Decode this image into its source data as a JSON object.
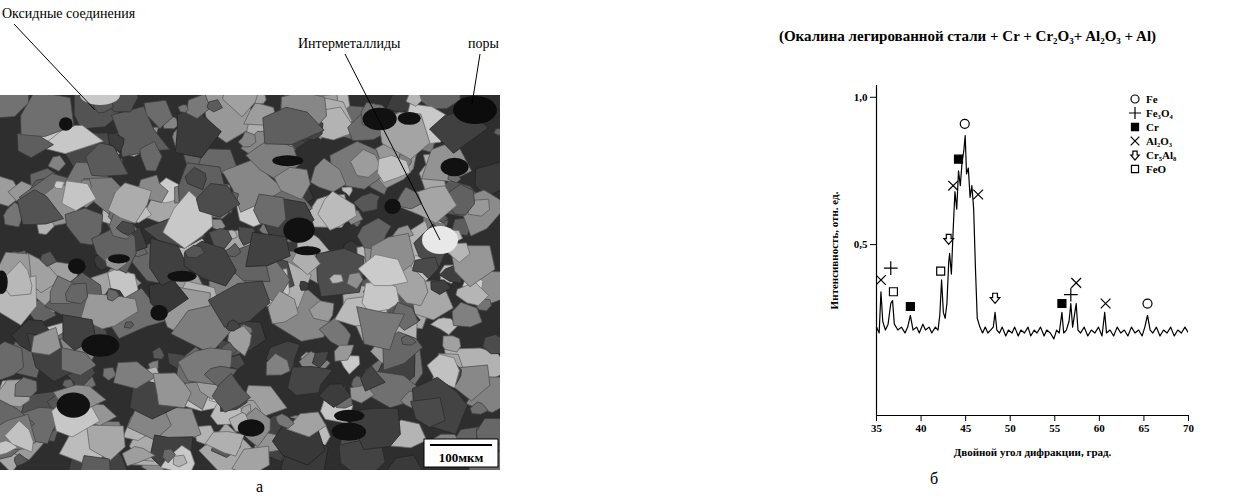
{
  "micrograph": {
    "annotations": [
      "Оксидные соединения",
      "Интерметаллиды",
      "поры"
    ],
    "scale_bar": "100мкм",
    "panel_label": "а"
  },
  "chart_data": {
    "type": "line",
    "title": "(Окалина легированной стали + Cr + Cr₂O₃+ Al₂O₃ + Al)",
    "x_label": "Двойной угол дифракции, град.",
    "y_label": "Интенсивность, отн. ед.",
    "panel_label": "б",
    "xlim": [
      35,
      70
    ],
    "xticks": [
      35,
      40,
      45,
      50,
      55,
      60,
      65,
      70
    ],
    "ylim": [
      -0.08,
      1.04
    ],
    "yticks": [
      {
        "value": 0.5,
        "label": "0,5"
      },
      {
        "value": 1,
        "label": "1,0"
      }
    ],
    "color": "#000000",
    "legend": "top-right",
    "x": [
      35.0,
      35.3,
      35.5,
      35.7,
      36.0,
      36.3,
      36.6,
      36.8,
      37.0,
      37.4,
      37.8,
      38.2,
      38.5,
      38.8,
      39.1,
      39.5,
      39.8,
      40.2,
      40.5,
      40.9,
      41.2,
      41.6,
      41.9,
      42.1,
      42.3,
      42.5,
      42.7,
      42.9,
      43.1,
      43.2,
      43.4,
      43.6,
      43.8,
      44.0,
      44.2,
      44.4,
      44.6,
      44.8,
      44.95,
      45.1,
      45.3,
      45.5,
      45.7,
      45.9,
      46.1,
      46.3,
      46.6,
      46.9,
      47.2,
      47.5,
      47.8,
      48.1,
      48.3,
      48.5,
      48.8,
      49.1,
      49.5,
      49.8,
      50.2,
      50.5,
      50.9,
      51.2,
      51.6,
      52.0,
      52.3,
      52.7,
      53.0,
      53.4,
      53.8,
      54.1,
      54.5,
      54.9,
      55.2,
      55.5,
      55.8,
      56.0,
      56.3,
      56.6,
      56.8,
      57.0,
      57.2,
      57.4,
      57.6,
      57.9,
      58.3,
      58.7,
      59.1,
      59.5,
      59.9,
      60.3,
      60.6,
      60.8,
      61.2,
      61.6,
      62.0,
      62.4,
      62.8,
      63.2,
      63.6,
      64.0,
      64.4,
      64.8,
      65.1,
      65.4,
      65.7,
      66.0,
      66.4,
      66.8,
      67.2,
      67.6,
      68.0,
      68.4,
      68.8,
      69.2,
      69.6,
      70.0
    ],
    "values": [
      0.22,
      0.2,
      0.34,
      0.24,
      0.21,
      0.23,
      0.3,
      0.31,
      0.23,
      0.21,
      0.22,
      0.2,
      0.22,
      0.26,
      0.21,
      0.22,
      0.2,
      0.23,
      0.21,
      0.22,
      0.2,
      0.22,
      0.21,
      0.26,
      0.38,
      0.27,
      0.25,
      0.3,
      0.44,
      0.47,
      0.4,
      0.55,
      0.68,
      0.62,
      0.75,
      0.7,
      0.78,
      0.82,
      0.87,
      0.74,
      0.76,
      0.66,
      0.7,
      0.62,
      0.42,
      0.25,
      0.22,
      0.2,
      0.22,
      0.2,
      0.21,
      0.22,
      0.27,
      0.21,
      0.2,
      0.22,
      0.19,
      0.21,
      0.2,
      0.22,
      0.19,
      0.21,
      0.2,
      0.22,
      0.19,
      0.21,
      0.2,
      0.22,
      0.19,
      0.21,
      0.2,
      0.18,
      0.21,
      0.2,
      0.27,
      0.2,
      0.21,
      0.24,
      0.3,
      0.22,
      0.26,
      0.3,
      0.21,
      0.2,
      0.22,
      0.19,
      0.21,
      0.2,
      0.22,
      0.19,
      0.27,
      0.2,
      0.21,
      0.19,
      0.22,
      0.2,
      0.21,
      0.19,
      0.22,
      0.2,
      0.21,
      0.19,
      0.22,
      0.26,
      0.21,
      0.2,
      0.22,
      0.19,
      0.21,
      0.2,
      0.22,
      0.19,
      0.21,
      0.2,
      0.22,
      0.2
    ],
    "series": [
      {
        "name": "Fe",
        "type": "scatter",
        "marker": "circle",
        "color": "#000000",
        "x": [
          44.9,
          65.4
        ],
        "values": [
          0.91,
          0.3
        ]
      },
      {
        "name": "Fe₃O₄",
        "type": "scatter",
        "marker": "plus",
        "color": "#000000",
        "x": [
          36.6,
          56.8
        ],
        "values": [
          0.42,
          0.33
        ]
      },
      {
        "name": "Cr",
        "type": "scatter",
        "marker": "square",
        "color": "#000000",
        "x": [
          38.8,
          44.2,
          55.8
        ],
        "values": [
          0.29,
          0.79,
          0.3
        ]
      },
      {
        "name": "Al₂O₃",
        "type": "scatter",
        "marker": "times",
        "color": "#000000",
        "x": [
          35.5,
          43.6,
          46.4,
          57.4,
          60.7
        ],
        "values": [
          0.38,
          0.7,
          0.67,
          0.37,
          0.3
        ]
      },
      {
        "name": "Cr₅Al₈",
        "type": "scatter",
        "marker": "arrow",
        "color": "#000000",
        "x": [
          43.1,
          48.3
        ],
        "values": [
          0.52,
          0.32
        ]
      },
      {
        "name": "FeO",
        "type": "scatter",
        "marker": "square-open",
        "color": "#000000",
        "x": [
          36.9,
          42.2
        ],
        "values": [
          0.34,
          0.41
        ]
      }
    ]
  }
}
